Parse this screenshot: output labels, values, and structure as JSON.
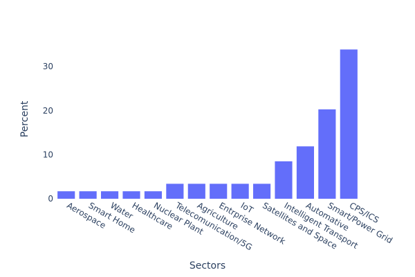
{
  "chart_data": {
    "type": "bar",
    "categories": [
      "Aerospace",
      "Smart Home",
      "Water",
      "Healthcare",
      "Nuclear Plant",
      "Telecomunication/5G",
      "Agriculture",
      "Entrprise Network",
      "IoT",
      "Satellites and Space",
      "Intelligent Transport",
      "Automative",
      "Smart/Power Grid",
      "CPS/ICS"
    ],
    "values": [
      1.7,
      1.7,
      1.7,
      1.7,
      1.7,
      3.4,
      3.4,
      3.4,
      3.4,
      3.4,
      8.5,
      11.9,
      20.3,
      33.9
    ],
    "xlabel": "Sectors",
    "ylabel": "Percent",
    "ylim": [
      0,
      35.7
    ],
    "yticks": [
      0,
      10,
      20,
      30
    ],
    "grid": true,
    "bar_color": "#636efa",
    "grid_color": "#ffffff",
    "legend": "none"
  }
}
